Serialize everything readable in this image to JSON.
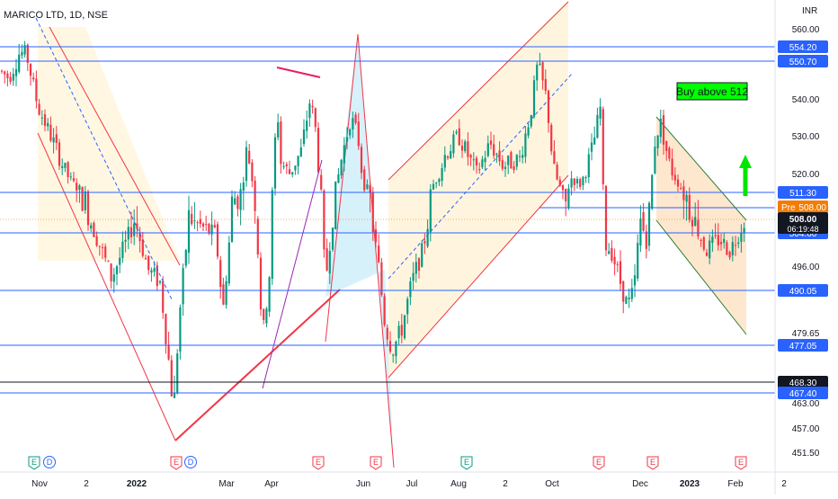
{
  "header": {
    "symbol": "MARICO LTD, 1D, NSE",
    "currency": "INR"
  },
  "chart_data": {
    "type": "candlestick",
    "title": "MARICO LTD, 1D, NSE",
    "ylabel": "INR",
    "ylim": [
      448,
      566
    ],
    "y_ticks": [
      {
        "value": 560,
        "label": "560.00"
      },
      {
        "value": 540,
        "label": "540.00"
      },
      {
        "value": 530,
        "label": "530.00"
      },
      {
        "value": 520,
        "label": "520.00"
      },
      {
        "value": 496,
        "label": "496.00"
      },
      {
        "value": 479.65,
        "label": "479.65"
      },
      {
        "value": 463,
        "label": "463.00"
      },
      {
        "value": 457,
        "label": "457.00"
      },
      {
        "value": 451.5,
        "label": "451.50"
      }
    ],
    "x_ticks": [
      {
        "label": "Nov",
        "bold": false
      },
      {
        "label": "2",
        "bold": false
      },
      {
        "label": "2022",
        "bold": true
      },
      {
        "label": "Mar",
        "bold": false
      },
      {
        "label": "Apr",
        "bold": false
      },
      {
        "label": "Jun",
        "bold": false
      },
      {
        "label": "Jul",
        "bold": false
      },
      {
        "label": "Aug",
        "bold": false
      },
      {
        "label": "2",
        "bold": false
      },
      {
        "label": "Oct",
        "bold": false
      },
      {
        "label": "Dec",
        "bold": false
      },
      {
        "label": "2023",
        "bold": true
      },
      {
        "label": "Feb",
        "bold": false
      },
      {
        "label": "2",
        "bold": false
      }
    ],
    "horizontal_levels": [
      {
        "value": 554.2,
        "label": "554.20",
        "color": "#2962ff"
      },
      {
        "value": 550.7,
        "label": "550.70",
        "color": "#2962ff"
      },
      {
        "value": 511.3,
        "label": "511.30",
        "color": "#2962ff"
      },
      {
        "value": 504.6,
        "label": "504.60",
        "color": "#2962ff"
      },
      {
        "value": 490.05,
        "label": "490.05",
        "color": "#2962ff"
      },
      {
        "value": 477.05,
        "label": "477.05",
        "color": "#2962ff"
      },
      {
        "value": 468.3,
        "label": "468.30",
        "color": "#131722"
      },
      {
        "value": 467.4,
        "label": "467.40",
        "color": "#2962ff"
      }
    ],
    "price_labels": [
      {
        "value": 508.0,
        "tag": "Pre",
        "label": "508.00",
        "color": "#f57c00"
      },
      {
        "value": 508.0,
        "label": "508.00",
        "sublabel": "06:19:48",
        "color": "#089981"
      }
    ],
    "annotation": {
      "text": "Buy above 512",
      "background": "#00ff00"
    },
    "event_markers": [
      "E",
      "D",
      "E",
      "D",
      "E",
      "E",
      "E",
      "E",
      "E",
      "E"
    ],
    "colors": {
      "up": "#089981",
      "down": "#f23645",
      "level": "#2962ff"
    }
  }
}
